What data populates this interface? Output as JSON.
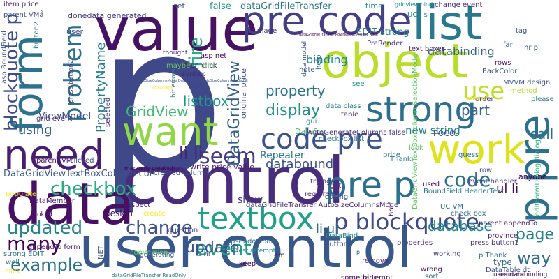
{
  "cloud": {
    "words": [
      {
        "text": "p",
        "color": "#3f4889"
      },
      {
        "text": "control",
        "color": "#472d7b"
      },
      {
        "text": "user control",
        "color": "#38588c"
      },
      {
        "text": "value",
        "color": "#471164"
      },
      {
        "text": "need",
        "color": "#481f70"
      },
      {
        "text": "data",
        "color": "#471063"
      },
      {
        "text": "object",
        "color": "#b8de29"
      },
      {
        "text": "strong",
        "color": "#2e6e8e"
      },
      {
        "text": "want",
        "color": "#8fd744"
      },
      {
        "text": "work",
        "color": "#dde318"
      },
      {
        "text": "pre code",
        "color": "#433e85"
      },
      {
        "text": "list",
        "color": "#2a788e"
      },
      {
        "text": "code pre",
        "color": "#3b528b"
      },
      {
        "text": "form",
        "color": "#2c728e"
      },
      {
        "text": "pre p",
        "color": "#2d708e"
      },
      {
        "text": "p pre",
        "color": "#2d708e"
      },
      {
        "text": "textbox",
        "color": "#1fa187"
      },
      {
        "text": "seem",
        "color": "#443b84"
      },
      {
        "text": "use",
        "color": "#bddf26"
      },
      {
        "text": "problem",
        "color": "#2d708e"
      },
      {
        "text": "blockquote p",
        "color": "#3e4c8a"
      },
      {
        "text": "p blockquote",
        "color": "#3e4a89"
      },
      {
        "text": "code",
        "color": "#2d708e"
      },
      {
        "text": "checkbox",
        "color": "#27ad81"
      },
      {
        "text": "change",
        "color": "#3b528b"
      },
      {
        "text": "updated",
        "color": "#25848e"
      },
      {
        "text": "many",
        "color": "#440154"
      },
      {
        "text": "example",
        "color": "#2c728e"
      },
      {
        "text": "event",
        "color": "#1f9e89"
      },
      {
        "text": "update",
        "color": "#39568c"
      },
      {
        "text": "way",
        "color": "#2f6c8e"
      },
      {
        "text": "page",
        "color": "#26818e"
      },
      {
        "text": "display",
        "color": "#21918c"
      },
      {
        "text": "fire",
        "color": "#27ad81"
      },
      {
        "text": "GridView",
        "color": "#3fbc73"
      },
      {
        "text": "DataGridView",
        "color": "#34618d"
      },
      {
        "text": "listbox",
        "color": "#1f968b"
      },
      {
        "text": "property",
        "color": "#2a768e"
      },
      {
        "text": "part",
        "color": "#33638d"
      },
      {
        "text": "databinding",
        "color": "#33638d"
      },
      {
        "text": "using",
        "color": "#34618d"
      },
      {
        "text": "li li",
        "color": "#482576"
      },
      {
        "text": "PropertyName",
        "color": "#287d8e"
      },
      {
        "text": "call",
        "color": "#2d708e"
      },
      {
        "text": "databound",
        "color": "#3a538b"
      },
      {
        "text": "database",
        "color": "#228c8d"
      },
      {
        "text": "ul li",
        "color": "#450559"
      },
      {
        "text": "li ul",
        "color": "#2d708e"
      },
      {
        "text": "binding",
        "color": "#238a8d"
      },
      {
        "text": "new string",
        "color": "#25838e"
      },
      {
        "text": "Repeater",
        "color": "#287c8e"
      },
      {
        "text": "DataGridViewTextBoxColumn col",
        "color": "#39558c"
      },
      {
        "text": "ViewModel",
        "color": "#3c508b"
      },
      {
        "text": "EDIT strong",
        "color": "#25858e"
      },
      {
        "text": "item price",
        "color": "#481769"
      },
      {
        "text": "parent VMå",
        "color": "#3b518b"
      },
      {
        "text": "UCå s",
        "color": "#25858e"
      },
      {
        "text": "dataGridFileTransfer",
        "color": "#2a788e"
      },
      {
        "text": "false",
        "color": "#1f9a8a"
      },
      {
        "text": "donedata generated",
        "color": "#46337f"
      },
      {
        "text": "time",
        "color": "#21908d"
      },
      {
        "text": "set",
        "color": "#3e4a89"
      },
      {
        "text": "change event",
        "color": "#482475"
      },
      {
        "text": "user",
        "color": "#3e4989"
      },
      {
        "text": "button2",
        "color": "#2a788e"
      },
      {
        "text": "asp BoundField",
        "color": "#3b528b"
      },
      {
        "text": "press button2",
        "color": "#443983"
      },
      {
        "text": "grid event",
        "color": "#453781"
      },
      {
        "text": "parent VM",
        "color": "#471164"
      },
      {
        "text": "clicked",
        "color": "#3e4989"
      },
      {
        "text": "manually created",
        "color": "#440154"
      },
      {
        "text": "indicate",
        "color": "#471365"
      },
      {
        "text": "write price value",
        "color": "#481b6d"
      },
      {
        "text": "DataSet",
        "color": "#4ac16d"
      },
      {
        "text": "AutoGenerateColumns false",
        "color": "#46337f"
      },
      {
        "text": "POCO",
        "color": "#3b528b"
      },
      {
        "text": "checkbox list",
        "color": "#2c728e"
      },
      {
        "text": "image",
        "color": "#46327e"
      },
      {
        "text": "button click",
        "color": "#482173"
      },
      {
        "text": "asp net",
        "color": "#440154"
      },
      {
        "text": "thought",
        "color": "#453781"
      },
      {
        "text": "original price",
        "color": "#3b528b"
      },
      {
        "text": "hit errors",
        "color": "#287d8e"
      },
      {
        "text": "maybe",
        "color": "#5ec962"
      },
      {
        "text": "one",
        "color": "#5ec962"
      },
      {
        "text": "syntax",
        "color": "#482878"
      },
      {
        "text": "note",
        "color": "#3b528b"
      },
      {
        "text": "help",
        "color": "#2d708e"
      },
      {
        "text": "PreRender",
        "color": "#46327e"
      },
      {
        "text": "text boxes",
        "color": "#481f70"
      },
      {
        "text": "MVVM design",
        "color": "#3b528b"
      },
      {
        "text": "method",
        "color": "#b5de2b"
      },
      {
        "text": "please",
        "color": "#2a788e"
      },
      {
        "text": "order",
        "color": "#472f7d"
      },
      {
        "text": "ideas",
        "color": "#fde725"
      },
      {
        "text": "see",
        "color": "#21918c"
      },
      {
        "text": "data model",
        "color": "#3b528b"
      },
      {
        "text": "data class",
        "color": "#26828e"
      },
      {
        "text": "table",
        "color": "#482576"
      },
      {
        "text": "gui",
        "color": "#25858e"
      },
      {
        "text": "Thank",
        "color": "#26818e"
      },
      {
        "text": "price",
        "color": "#2c728e"
      },
      {
        "text": "trying",
        "color": "#453781"
      },
      {
        "text": "got",
        "color": "#453781"
      },
      {
        "text": "require",
        "color": "#482173"
      },
      {
        "text": "looking",
        "color": "#3b528b"
      },
      {
        "text": "look",
        "color": "#5ec962"
      },
      {
        "text": "guess",
        "color": "#2c728e"
      },
      {
        "text": "row",
        "color": "#3e4a89"
      },
      {
        "text": "anyone",
        "color": "#440154"
      },
      {
        "text": "event handler",
        "color": "#443983"
      },
      {
        "text": "BoundField HeaderText",
        "color": "#2a788e"
      },
      {
        "text": "editFormDialog dialog",
        "color": "#35b779"
      },
      {
        "text": "UC VM",
        "color": "#2c728e"
      },
      {
        "text": "check box",
        "color": "#2d708e"
      },
      {
        "text": "parent appendTo",
        "color": "#481d6f"
      },
      {
        "text": "province",
        "color": "#481b6d"
      },
      {
        "text": "press button1",
        "color": "#453781"
      },
      {
        "text": "type",
        "color": "#31688e"
      },
      {
        "text": "DataTable dt",
        "color": "#3b528b"
      },
      {
        "text": "uses databinding",
        "color": "#481668"
      },
      {
        "text": "sort",
        "color": "#2d708e"
      },
      {
        "text": "wrong",
        "color": "#481668"
      },
      {
        "text": "working",
        "color": "#414487"
      },
      {
        "text": "properties",
        "color": "#472f7d"
      },
      {
        "text": "DataBind",
        "color": "#27808e"
      },
      {
        "text": "button",
        "color": "#3b528b"
      },
      {
        "text": "remove",
        "color": "#482475"
      },
      {
        "text": "keep",
        "color": "#440154"
      },
      {
        "text": "pseudo code",
        "color": "#2d708e"
      },
      {
        "text": "em",
        "color": "#440154"
      },
      {
        "text": "p hr",
        "color": "#2d708e"
      },
      {
        "text": "show",
        "color": "#453781"
      },
      {
        "text": "design",
        "color": "#440154"
      },
      {
        "text": "respect",
        "color": "#481668"
      },
      {
        "text": "create",
        "color": "#fde725"
      },
      {
        "text": "question",
        "color": "#443983"
      },
      {
        "text": "created columns",
        "color": "#3b528b"
      },
      {
        "text": "DataMember",
        "color": "#481668"
      },
      {
        "text": "looked",
        "color": "#481668"
      },
      {
        "text": "populate",
        "color": "#fde725"
      },
      {
        "text": "appendTo form",
        "color": "#481f70"
      },
      {
        "text": "conversion",
        "color": "#5ec962"
      },
      {
        "text": "generating",
        "color": "#3b528b"
      },
      {
        "text": "strong EDIT",
        "color": "#2a788e"
      },
      {
        "text": "NET",
        "color": "#3b528b"
      },
      {
        "text": "click",
        "color": "#fde725"
      },
      {
        "text": "latest attempt",
        "color": "#21918c"
      },
      {
        "text": "well",
        "color": "#2a788e"
      },
      {
        "text": "p",
        "color": "#3b528b"
      },
      {
        "text": "used",
        "color": "#440154"
      },
      {
        "text": "hr p",
        "color": "#3b528b"
      },
      {
        "text": "selected",
        "color": "#482878"
      },
      {
        "text": "rows",
        "color": "#481668"
      },
      {
        "text": "BackColor",
        "color": "#3b528b"
      },
      {
        "text": "something",
        "color": "#440154"
      },
      {
        "text": "attempt",
        "color": "#481668"
      },
      {
        "text": "far",
        "color": "#3b528b"
      },
      {
        "text": "gridview bind",
        "color": "#21918c"
      },
      {
        "text": "tag",
        "color": "#3b528b"
      },
      {
        "text": "href",
        "color": "#440154"
      },
      {
        "text": "p Thank",
        "color": "#2c728e"
      },
      {
        "text": "dataGridFileTransfer AutoSizeColumnsMode",
        "color": "#482878"
      },
      {
        "text": "DataGridViewTextBoxColumn SelectionMode",
        "color": "#5ec962"
      },
      {
        "text": "dataGridFileTransfer ReadOnly",
        "color": "#2a788e"
      },
      {
        "text": "dataGridFileTransfer RowHeadersVisible false",
        "color": "#440154"
      },
      {
        "text": "AutoSizeColumnsMode DataGridViewAutoSizeColumnsMode Fill",
        "color": "#3b528b"
      },
      {
        "text": "ReadOnly true",
        "color": "#481668"
      },
      {
        "text": "var",
        "color": "#440154"
      },
      {
        "text": "across time",
        "color": "#fde725"
      }
    ]
  }
}
